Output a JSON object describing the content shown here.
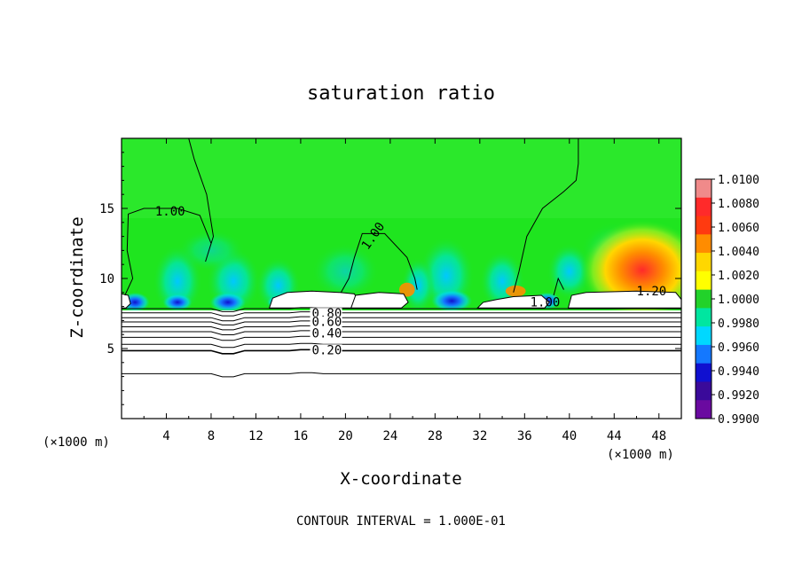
{
  "chart_data": {
    "type": "heatmap",
    "title": "saturation ratio",
    "xlabel": "X-coordinate",
    "ylabel": "Z-coordinate",
    "x_unit": "(×1000 m)",
    "xlim": [
      0,
      50
    ],
    "ylim": [
      0,
      20
    ],
    "x_ticks": [
      "4",
      "8",
      "12",
      "16",
      "20",
      "24",
      "28",
      "32",
      "36",
      "40",
      "44",
      "48"
    ],
    "y_ticks": [
      "5",
      "10",
      "15"
    ],
    "colorbar": {
      "labels": [
        "1.0100",
        "1.0080",
        "1.0060",
        "1.0040",
        "1.0020",
        "1.0000",
        "0.9980",
        "0.9960",
        "0.9940",
        "0.9920",
        "0.9900"
      ],
      "colors": [
        "#f08a8a",
        "#ff2a2a",
        "#ff3a10",
        "#ff8c00",
        "#ffd700",
        "#ffff00",
        "#22d22a",
        "#00e6a0",
        "#00d8ff",
        "#1478ff",
        "#1010d0",
        "#3a0a9a",
        "#6a0aa0"
      ]
    },
    "field_colors": {
      "background": "#1fe51f",
      "low": "#00d8ff",
      "very_low": "#1010d0",
      "high": "#ff2a2a",
      "mid_high": "#ffd700"
    },
    "contour_labels": [
      {
        "text": "1.00",
        "x": 3.0,
        "y": 14.5
      },
      {
        "text": "1.00",
        "x": 22.0,
        "y": 12.0
      },
      {
        "text": "1.20",
        "x": 46.0,
        "y": 8.8
      },
      {
        "text": "1.00",
        "x": 36.5,
        "y": 8.0
      },
      {
        "text": "0.80",
        "x": 17.0,
        "y": 7.2
      },
      {
        "text": "0.60",
        "x": 17.0,
        "y": 6.6
      },
      {
        "text": "0.40",
        "x": 17.0,
        "y": 5.8
      },
      {
        "text": "0.20",
        "x": 17.0,
        "y": 4.6
      }
    ],
    "footer": "CONTOUR INTERVAL = 1.000E-01"
  }
}
